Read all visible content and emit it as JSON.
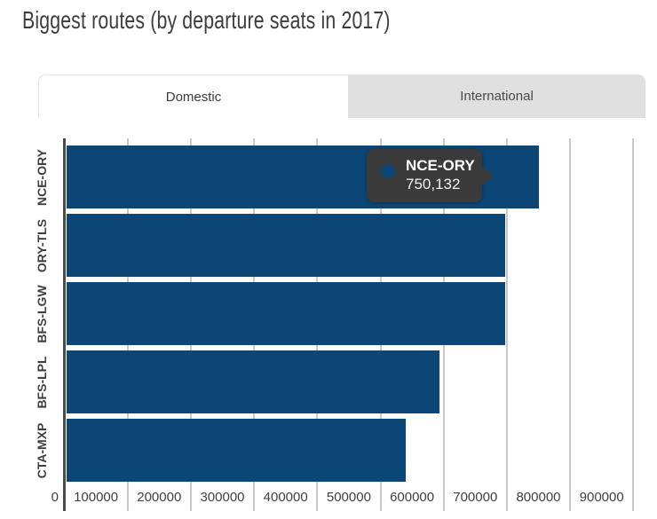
{
  "page": {
    "title": "Biggest routes (by departure seats in 2017)"
  },
  "tabs": [
    {
      "label": "Domestic",
      "active": true
    },
    {
      "label": "International",
      "active": false
    }
  ],
  "colors": {
    "bar": "#0b4677",
    "tooltip_bg": "#3a3a3a",
    "grid": "#c9c9c9",
    "axis": "#4a4a4a",
    "inactive_tab_bg": "#e0e0e0"
  },
  "chart_data": {
    "type": "bar",
    "orientation": "horizontal",
    "title": "Biggest routes (by departure seats in 2017)",
    "categories": [
      "NCE-ORY",
      "ORY-TLS",
      "BFS-LGW",
      "BFS-LPL",
      "CTA-MXP"
    ],
    "values": [
      750132,
      698000,
      697000,
      594000,
      540000
    ],
    "xlabel": "",
    "ylabel": "",
    "xlim": [
      0,
      900000
    ],
    "x_ticks": [
      0,
      100000,
      200000,
      300000,
      400000,
      500000,
      600000,
      700000,
      800000,
      900000
    ],
    "grid": true,
    "legend": false,
    "tooltip": {
      "label": "NCE-ORY",
      "value": "750,132"
    }
  }
}
